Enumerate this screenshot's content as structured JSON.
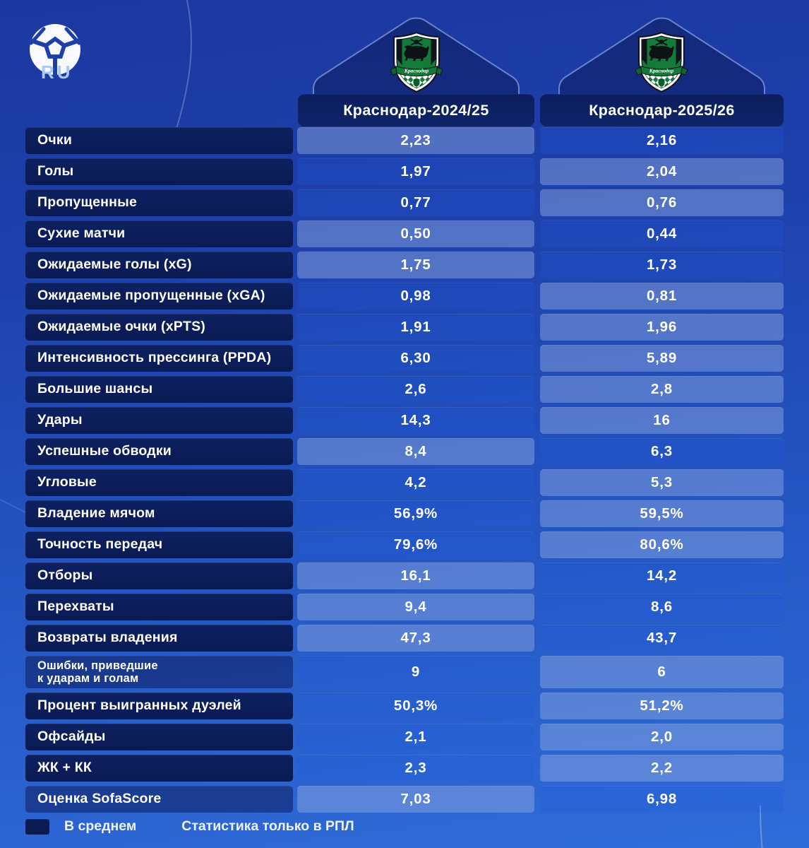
{
  "brand": {
    "icon": "football-icon",
    "text": "RU"
  },
  "chart_data": {
    "type": "table",
    "title": "",
    "columns": [
      "Краснодар-2024/25",
      "Краснодар-2025/26"
    ],
    "legend_position": "bottom-left",
    "rows": [
      {
        "label": "Очки",
        "display": [
          "2,23",
          "2,16"
        ],
        "values": [
          2.23,
          2.16
        ],
        "best": 0,
        "avg": true
      },
      {
        "label": "Голы",
        "display": [
          "1,97",
          "2,04"
        ],
        "values": [
          1.97,
          2.04
        ],
        "best": 1,
        "avg": true
      },
      {
        "label": "Пропущенные",
        "display": [
          "0,77",
          "0,76"
        ],
        "values": [
          0.77,
          0.76
        ],
        "best": 1,
        "avg": true
      },
      {
        "label": "Сухие матчи",
        "display": [
          "0,50",
          "0,44"
        ],
        "values": [
          0.5,
          0.44
        ],
        "best": 0,
        "avg": true
      },
      {
        "label": "Ожидаемые голы (xG)",
        "display": [
          "1,75",
          "1,73"
        ],
        "values": [
          1.75,
          1.73
        ],
        "best": 0,
        "avg": true
      },
      {
        "label": "Ожидаемые пропущенные (xGA)",
        "display": [
          "0,98",
          "0,81"
        ],
        "values": [
          0.98,
          0.81
        ],
        "best": 1,
        "avg": true
      },
      {
        "label": "Ожидаемые очки (xPTS)",
        "display": [
          "1,91",
          "1,96"
        ],
        "values": [
          1.91,
          1.96
        ],
        "best": 1,
        "avg": true
      },
      {
        "label": "Интенсивность прессинга (PPDA)",
        "display": [
          "6,30",
          "5,89"
        ],
        "values": [
          6.3,
          5.89
        ],
        "best": 1,
        "avg": true
      },
      {
        "label": "Большие шансы",
        "display": [
          "2,6",
          "2,8"
        ],
        "values": [
          2.6,
          2.8
        ],
        "best": 1,
        "avg": true
      },
      {
        "label": "Удары",
        "display": [
          "14,3",
          "16"
        ],
        "values": [
          14.3,
          16
        ],
        "best": 1,
        "avg": true
      },
      {
        "label": "Успешные обводки",
        "display": [
          "8,4",
          "6,3"
        ],
        "values": [
          8.4,
          6.3
        ],
        "best": 0,
        "avg": true
      },
      {
        "label": "Угловые",
        "display": [
          "4,2",
          "5,3"
        ],
        "values": [
          4.2,
          5.3
        ],
        "best": 1,
        "avg": true
      },
      {
        "label": "Владение мячом",
        "display": [
          "56,9%",
          "59,5%"
        ],
        "values": [
          56.9,
          59.5
        ],
        "best": 1,
        "avg": true
      },
      {
        "label": "Точность передач",
        "display": [
          "79,6%",
          "80,6%"
        ],
        "values": [
          79.6,
          80.6
        ],
        "best": 1,
        "avg": true
      },
      {
        "label": "Отборы",
        "display": [
          "16,1",
          "14,2"
        ],
        "values": [
          16.1,
          14.2
        ],
        "best": 0,
        "avg": true
      },
      {
        "label": "Перехваты",
        "display": [
          "9,4",
          "8,6"
        ],
        "values": [
          9.4,
          8.6
        ],
        "best": 0,
        "avg": true
      },
      {
        "label": "Возвраты владения",
        "display": [
          "47,3",
          "43,7"
        ],
        "values": [
          47.3,
          43.7
        ],
        "best": 0,
        "avg": true
      },
      {
        "label": "Ошибки, приведшие\nк ударам и голам",
        "display": [
          "9",
          "6"
        ],
        "values": [
          9,
          6
        ],
        "best": 1,
        "avg": false,
        "tall": true
      },
      {
        "label": "Процент выигранных дуэлей",
        "display": [
          "50,3%",
          "51,2%"
        ],
        "values": [
          50.3,
          51.2
        ],
        "best": 1,
        "avg": true
      },
      {
        "label": "Офсайды",
        "display": [
          "2,1",
          "2,0"
        ],
        "values": [
          2.1,
          2.0
        ],
        "best": 1,
        "avg": true
      },
      {
        "label": "ЖК + КК",
        "display": [
          "2,3",
          "2,2"
        ],
        "values": [
          2.3,
          2.2
        ],
        "best": 1,
        "avg": true
      },
      {
        "label": "Оценка SofaScore",
        "display": [
          "7,03",
          "6,98"
        ],
        "values": [
          7.03,
          6.98
        ],
        "best": 0,
        "avg": false
      }
    ]
  },
  "legend": {
    "average_label": "В среднем",
    "note": "Статистика только в РПЛ"
  },
  "colors": {
    "background_top": "#1b38a0",
    "background_bottom": "#2f6cd9",
    "label_cell": "#0a1a52",
    "value_cell": "#1e49b9",
    "value_cell_highlight": "#5373c6",
    "header_cell": "#0d2162",
    "crest_green": "#147a3a",
    "text": "#ffffff",
    "ru_text": "#a9c7f8"
  }
}
